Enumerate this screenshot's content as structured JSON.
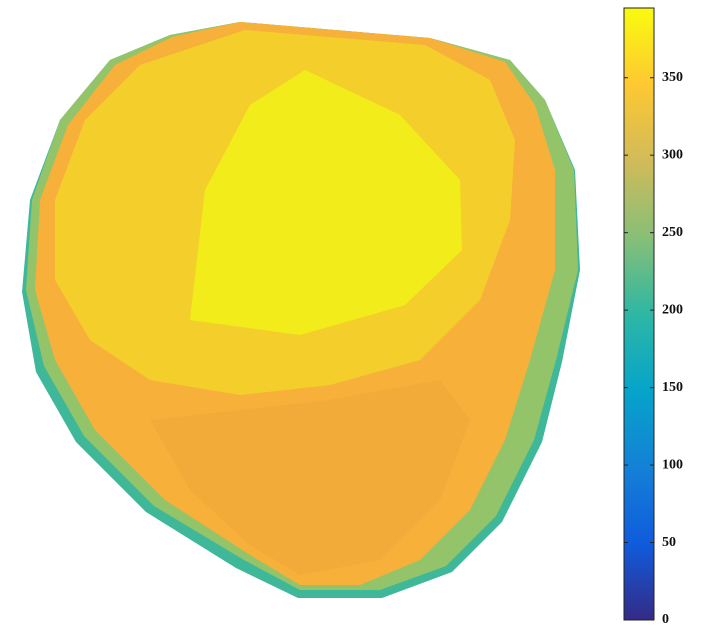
{
  "chart_data": {
    "type": "surface",
    "colormap": "parula",
    "clim": [
      0,
      395
    ],
    "cticks": [
      0,
      50,
      100,
      150,
      200,
      250,
      300,
      350
    ]
  }
}
